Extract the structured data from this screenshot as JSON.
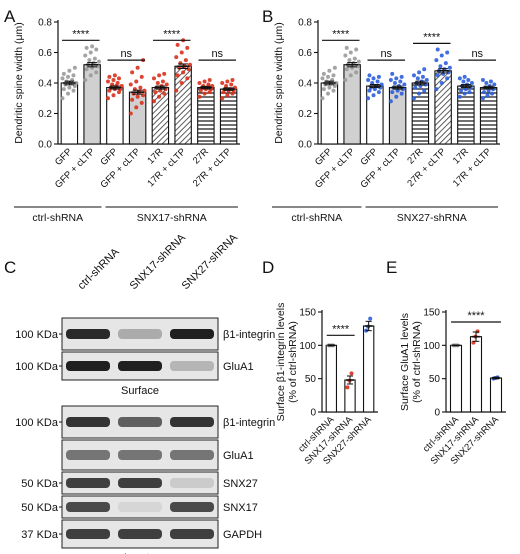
{
  "panels": {
    "A": "A",
    "B": "B",
    "C": "C",
    "D": "D",
    "E": "E"
  },
  "colors": {
    "grey_dots": "#9a9a9a",
    "red_dots": "#d9301c",
    "blue_dots": "#2c5fdb",
    "grey_fill": "#d0d0d0",
    "hatch": "#555555",
    "blot_band": "#1a1a1a",
    "blot_bg": "#e6e6e6"
  },
  "chart_data": [
    {
      "id": "A",
      "type": "bar",
      "ylabel": "Dendritic spine width (μm)",
      "ylim": [
        0.0,
        0.8
      ],
      "yticks": [
        "0.0",
        "0.2",
        "0.4",
        "0.6",
        "0.8"
      ],
      "categories": [
        "GFP",
        "GFP + cLTP",
        "GFP",
        "GFP + cLTP",
        "17R",
        "17R + cLTP",
        "27R",
        "27R + cLTP"
      ],
      "values": [
        0.4,
        0.52,
        0.37,
        0.34,
        0.37,
        0.51,
        0.37,
        0.36
      ],
      "errors": [
        0.012,
        0.014,
        0.01,
        0.013,
        0.01,
        0.015,
        0.008,
        0.008
      ],
      "bar_style": [
        "plain",
        "grey",
        "plain",
        "grey",
        "hatch",
        "hatch",
        "stripe",
        "stripe"
      ],
      "dot_color": [
        "grey",
        "grey",
        "red",
        "red",
        "red",
        "red",
        "red",
        "red"
      ],
      "points": [
        [
          0.3,
          0.33,
          0.35,
          0.36,
          0.37,
          0.38,
          0.39,
          0.4,
          0.4,
          0.41,
          0.42,
          0.43,
          0.44,
          0.45,
          0.46,
          0.48,
          0.5
        ],
        [
          0.42,
          0.45,
          0.47,
          0.49,
          0.5,
          0.51,
          0.52,
          0.53,
          0.54,
          0.55,
          0.56,
          0.58,
          0.6,
          0.62,
          0.63,
          0.64
        ],
        [
          0.3,
          0.32,
          0.34,
          0.35,
          0.36,
          0.36,
          0.37,
          0.38,
          0.38,
          0.39,
          0.4,
          0.41,
          0.42,
          0.43,
          0.44,
          0.45
        ],
        [
          0.2,
          0.24,
          0.27,
          0.29,
          0.31,
          0.32,
          0.33,
          0.34,
          0.35,
          0.36,
          0.37,
          0.39,
          0.41,
          0.44,
          0.47,
          0.5,
          0.55
        ],
        [
          0.28,
          0.31,
          0.33,
          0.34,
          0.35,
          0.36,
          0.37,
          0.38,
          0.39,
          0.4,
          0.41,
          0.43,
          0.45,
          0.46
        ],
        [
          0.35,
          0.4,
          0.43,
          0.45,
          0.47,
          0.49,
          0.5,
          0.51,
          0.52,
          0.53,
          0.55,
          0.57,
          0.6,
          0.63,
          0.65,
          0.68
        ],
        [
          0.31,
          0.33,
          0.34,
          0.35,
          0.36,
          0.36,
          0.37,
          0.37,
          0.38,
          0.38,
          0.39,
          0.4,
          0.41,
          0.42
        ],
        [
          0.3,
          0.32,
          0.33,
          0.34,
          0.35,
          0.35,
          0.36,
          0.36,
          0.37,
          0.38,
          0.39,
          0.4,
          0.41,
          0.42
        ]
      ],
      "significance": [
        {
          "from": 0,
          "to": 1,
          "label": "****",
          "y": 0.68
        },
        {
          "from": 2,
          "to": 3,
          "label": "ns",
          "y": 0.55
        },
        {
          "from": 4,
          "to": 5,
          "label": "****",
          "y": 0.68
        },
        {
          "from": 6,
          "to": 7,
          "label": "ns",
          "y": 0.55
        }
      ],
      "groups": [
        {
          "label": "ctrl-shRNA",
          "from": 0,
          "to": 1
        },
        {
          "label": "SNX17-shRNA",
          "from": 2,
          "to": 7
        }
      ]
    },
    {
      "id": "B",
      "type": "bar",
      "ylabel": "Dendritic spine width (μm)",
      "ylim": [
        0.0,
        0.8
      ],
      "yticks": [
        "0.0",
        "0.2",
        "0.4",
        "0.6",
        "0.8"
      ],
      "categories": [
        "GFP",
        "GFP + cLTP",
        "GFP",
        "GFP + cLTP",
        "27R",
        "27R + cLTP",
        "17R",
        "17R + cLTP"
      ],
      "values": [
        0.4,
        0.52,
        0.38,
        0.37,
        0.4,
        0.48,
        0.38,
        0.37
      ],
      "errors": [
        0.012,
        0.014,
        0.01,
        0.01,
        0.012,
        0.014,
        0.01,
        0.009
      ],
      "bar_style": [
        "plain",
        "grey",
        "plain",
        "grey",
        "stripe",
        "hatch",
        "stripe",
        "stripe"
      ],
      "dot_color": [
        "grey",
        "grey",
        "blue",
        "blue",
        "blue",
        "blue",
        "blue",
        "blue"
      ],
      "points": [
        [
          0.3,
          0.33,
          0.35,
          0.36,
          0.37,
          0.38,
          0.39,
          0.4,
          0.4,
          0.41,
          0.42,
          0.43,
          0.44,
          0.45,
          0.46,
          0.48,
          0.5
        ],
        [
          0.42,
          0.45,
          0.47,
          0.49,
          0.5,
          0.51,
          0.52,
          0.53,
          0.54,
          0.55,
          0.56,
          0.58,
          0.6,
          0.62,
          0.63
        ],
        [
          0.3,
          0.32,
          0.34,
          0.35,
          0.36,
          0.37,
          0.37,
          0.38,
          0.39,
          0.4,
          0.41,
          0.42,
          0.43,
          0.44,
          0.45
        ],
        [
          0.28,
          0.31,
          0.33,
          0.34,
          0.35,
          0.36,
          0.37,
          0.38,
          0.39,
          0.4,
          0.41,
          0.42,
          0.43,
          0.44,
          0.46
        ],
        [
          0.3,
          0.33,
          0.35,
          0.37,
          0.38,
          0.39,
          0.4,
          0.41,
          0.42,
          0.43,
          0.44,
          0.45,
          0.47,
          0.49
        ],
        [
          0.36,
          0.4,
          0.43,
          0.45,
          0.46,
          0.47,
          0.48,
          0.49,
          0.5,
          0.51,
          0.53,
          0.55,
          0.58,
          0.6,
          0.62
        ],
        [
          0.31,
          0.33,
          0.34,
          0.35,
          0.36,
          0.37,
          0.38,
          0.39,
          0.4,
          0.41,
          0.42,
          0.43,
          0.44
        ],
        [
          0.3,
          0.32,
          0.33,
          0.34,
          0.35,
          0.36,
          0.37,
          0.38,
          0.39,
          0.4,
          0.41,
          0.42
        ]
      ],
      "significance": [
        {
          "from": 0,
          "to": 1,
          "label": "****",
          "y": 0.68
        },
        {
          "from": 2,
          "to": 3,
          "label": "ns",
          "y": 0.55
        },
        {
          "from": 4,
          "to": 5,
          "label": "****",
          "y": 0.66
        },
        {
          "from": 6,
          "to": 7,
          "label": "ns",
          "y": 0.55
        }
      ],
      "groups": [
        {
          "label": "ctrl-shRNA",
          "from": 0,
          "to": 1
        },
        {
          "label": "SNX27-shRNA",
          "from": 2,
          "to": 7
        }
      ]
    },
    {
      "id": "D",
      "type": "bar",
      "ylabel": "Surface β1-integrin levels",
      "ylabel2": "(% of ctrl-shRNA)",
      "ylim": [
        0,
        150
      ],
      "yticks": [
        "0",
        "50",
        "100",
        "150"
      ],
      "categories": [
        "ctrl-shRNA",
        "SNX17-shRNA",
        "SNX27-shRNA"
      ],
      "values": [
        100,
        48,
        129
      ],
      "errors": [
        0.8,
        6,
        7
      ],
      "dot_color": [
        "grey",
        "red",
        "blue"
      ],
      "points": [
        [
          100,
          100,
          100
        ],
        [
          37,
          47,
          58
        ],
        [
          122,
          128,
          140
        ]
      ],
      "significance": [
        {
          "from": 0,
          "to": 1,
          "label": "****",
          "y": 115
        }
      ]
    },
    {
      "id": "E",
      "type": "bar",
      "ylabel": "Surface GluA1 levels",
      "ylabel2": "(% of ctrl-shRNA)",
      "ylim": [
        0,
        150
      ],
      "yticks": [
        "0",
        "50",
        "100",
        "150"
      ],
      "categories": [
        "ctrl-shRNA",
        "SNX17-shRNA",
        "SNX27-shRNA"
      ],
      "values": [
        100,
        113,
        51
      ],
      "errors": [
        0.5,
        7,
        1.2
      ],
      "dot_color": [
        "grey",
        "red",
        "blue"
      ],
      "points": [
        [
          100,
          100,
          100
        ],
        [
          104,
          113,
          121
        ],
        [
          50,
          51,
          52
        ]
      ],
      "significance": [
        {
          "from": 0,
          "to": 2,
          "label": "****",
          "y": 135
        }
      ]
    }
  ],
  "blot": {
    "lanes": [
      "ctrl-shRNA",
      "SNX17-shRNA",
      "SNX27-shRNA"
    ],
    "surface": {
      "caption": "Surface",
      "rows": [
        {
          "kda": "100 KDa",
          "protein": "β1-integrin",
          "intensity": [
            0.9,
            0.3,
            0.95
          ]
        },
        {
          "kda": "100 KDa",
          "protein": "GluA1",
          "intensity": [
            0.95,
            0.95,
            0.25
          ]
        }
      ]
    },
    "lysate": {
      "caption": "Lysate",
      "rows": [
        {
          "kda": "100 KDa",
          "protein": "β1-integrin",
          "intensity": [
            0.85,
            0.65,
            0.85
          ]
        },
        {
          "kda": "",
          "protein": "GluA1",
          "intensity": [
            0.55,
            0.55,
            0.55
          ]
        },
        {
          "kda": "50 KDa",
          "protein": "SNX27",
          "intensity": [
            0.8,
            0.8,
            0.15
          ]
        },
        {
          "kda": "50 KDa",
          "protein": "SNX17",
          "intensity": [
            0.75,
            0.1,
            0.75
          ]
        },
        {
          "kda": "37 KDa",
          "protein": "GAPDH",
          "intensity": [
            0.8,
            0.8,
            0.8
          ]
        }
      ]
    }
  }
}
